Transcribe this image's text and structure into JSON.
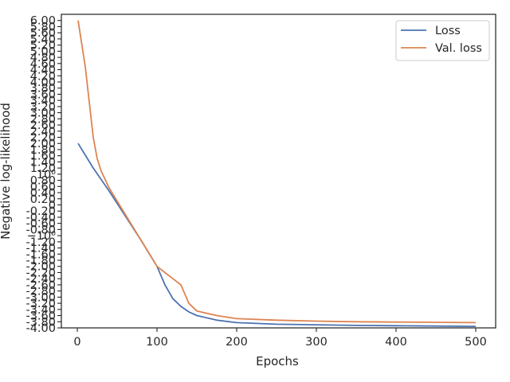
{
  "chart_data": {
    "type": "line",
    "title": "",
    "xlabel": "Epochs",
    "ylabel": "Negative log-likelihood",
    "xlim": [
      -20,
      525
    ],
    "x_ticks": [
      0,
      100,
      200,
      300,
      400,
      500
    ],
    "y_scale": "symlog",
    "y_scale_linthresh": 1,
    "ylim": [
      -4.0,
      6.2
    ],
    "y_tick_labels": [
      "6.00",
      "5.80",
      "5.60",
      "5.40",
      "5.20",
      "5.00",
      "4.80",
      "4.60",
      "4.40",
      "4.20",
      "4.00",
      "3.80",
      "3.60",
      "3.40",
      "3.20",
      "3.00",
      "2.80",
      "2.60",
      "2.40",
      "2.20",
      "2.00",
      "1.80",
      "1.60",
      "1.40",
      "1.20",
      "10⁰",
      "0.80",
      "0.60",
      "0.40",
      "0.20",
      "0",
      "-0.20",
      "-0.40",
      "-0.60",
      "-0.80",
      "−10⁰",
      "-1.20",
      "-1.40",
      "-1.60",
      "-1.80",
      "-2.00",
      "-2.20",
      "-2.40",
      "-2.60",
      "-2.80",
      "-3.00",
      "-3.20",
      "-3.40",
      "-3.60",
      "-3.80",
      "-4.00"
    ],
    "grid": false,
    "legend_position": "top-right",
    "series": [
      {
        "name": "Loss",
        "color": "#4c72b0",
        "x": [
          1,
          20,
          40,
          60,
          80,
          100,
          110,
          120,
          130,
          140,
          150,
          175,
          200,
          250,
          300,
          350,
          400,
          450,
          500
        ],
        "y": [
          2.0,
          1.2,
          0.45,
          -0.35,
          -1.15,
          -2.0,
          -2.6,
          -3.05,
          -3.3,
          -3.48,
          -3.6,
          -3.75,
          -3.83,
          -3.88,
          -3.9,
          -3.92,
          -3.93,
          -3.94,
          -3.95
        ]
      },
      {
        "name": "Val. loss",
        "color": "#dd8452",
        "x": [
          1,
          10,
          20,
          25,
          30,
          40,
          60,
          80,
          100,
          110,
          120,
          130,
          140,
          150,
          175,
          200,
          250,
          300,
          350,
          400,
          450,
          500
        ],
        "y": [
          6.0,
          4.5,
          2.2,
          1.5,
          1.1,
          0.55,
          -0.3,
          -1.15,
          -2.0,
          -2.2,
          -2.4,
          -2.6,
          -3.2,
          -3.45,
          -3.6,
          -3.7,
          -3.75,
          -3.78,
          -3.8,
          -3.81,
          -3.82,
          -3.83
        ]
      }
    ]
  }
}
